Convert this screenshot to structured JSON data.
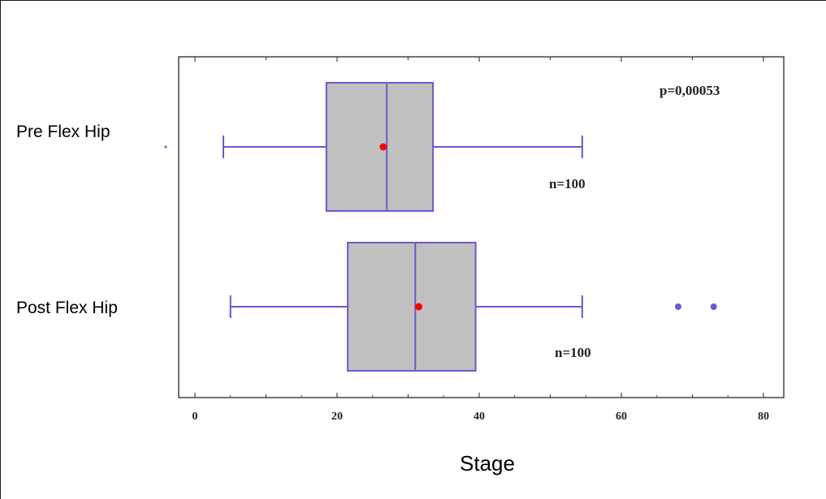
{
  "chart_data": {
    "type": "boxplot",
    "orientation": "horizontal",
    "xlabel": "Stage",
    "xlim": [
      -2,
      82
    ],
    "xticks": [
      0,
      20,
      40,
      60,
      80
    ],
    "x_tick_labels": [
      "0",
      "20",
      "40",
      "60",
      "80"
    ],
    "annotation": "p=0,00053",
    "colors": {
      "box_fill": "#c0c0c0",
      "box_stroke": "#6a5acd",
      "mean_marker": "#ff0000",
      "outlier": "#6a5acd",
      "axis": "#444444"
    },
    "series": [
      {
        "name": "Pre Flex Hip",
        "whisker_low": 4,
        "q1": 18.5,
        "median": 27,
        "q3": 33.5,
        "whisker_high": 54.5,
        "mean": 26.5,
        "outliers": [],
        "n_label": "n=100"
      },
      {
        "name": "Post Flex Hip",
        "whisker_low": 5,
        "q1": 21.5,
        "median": 31,
        "q3": 39.5,
        "whisker_high": 54.5,
        "mean": 31.5,
        "outliers": [
          68,
          73
        ],
        "n_label": "n=100"
      }
    ]
  }
}
